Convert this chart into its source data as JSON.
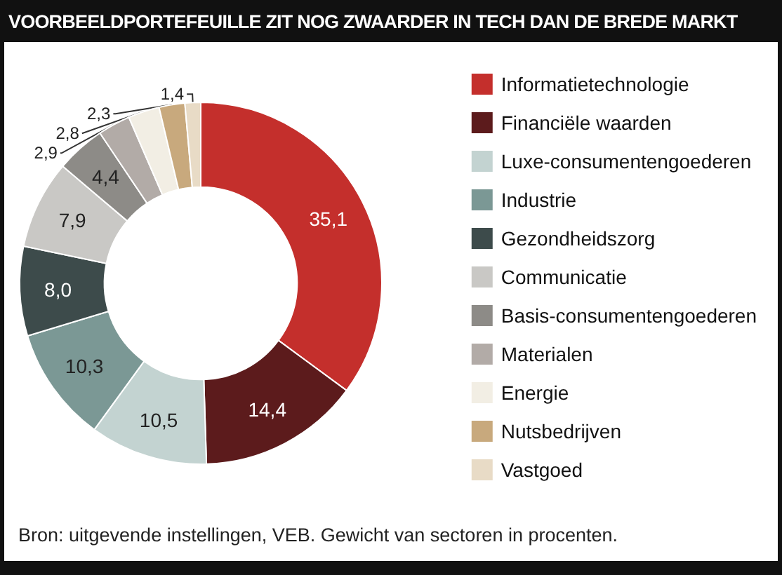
{
  "chart_data": {
    "type": "donut",
    "title": "VOORBEELDPORTEFEUILLE ZIT NOG ZWAARDER IN TECH DAN DE BREDE MARKT",
    "categories": [
      "Informatietechnologie",
      "Financiële waarden",
      "Luxe-consumentengoederen",
      "Industrie",
      "Gezondheidszorg",
      "Communicatie",
      "Basis-consumentengoederen",
      "Materialen",
      "Energie",
      "Nutsbedrijven",
      "Vastgoed"
    ],
    "values": [
      35.1,
      14.4,
      10.5,
      10.3,
      8.0,
      7.9,
      4.4,
      2.9,
      2.8,
      2.3,
      1.4
    ],
    "value_labels": [
      "35,1",
      "14,4",
      "10,5",
      "10,3",
      "8,0",
      "7,9",
      "4,4",
      "2,9",
      "2,8",
      "2,3",
      "1,4"
    ],
    "colors": [
      "#c42f2c",
      "#5c1b1c",
      "#c3d3d1",
      "#7b9895",
      "#3d4b4b",
      "#c9c8c5",
      "#8d8b87",
      "#b2aba7",
      "#f2eee4",
      "#c8a97d",
      "#e8dbc6"
    ],
    "legend": "right",
    "annotations": [
      "Bron: uitgevende instellingen, VEB. Gewicht van sectoren in procenten."
    ]
  }
}
